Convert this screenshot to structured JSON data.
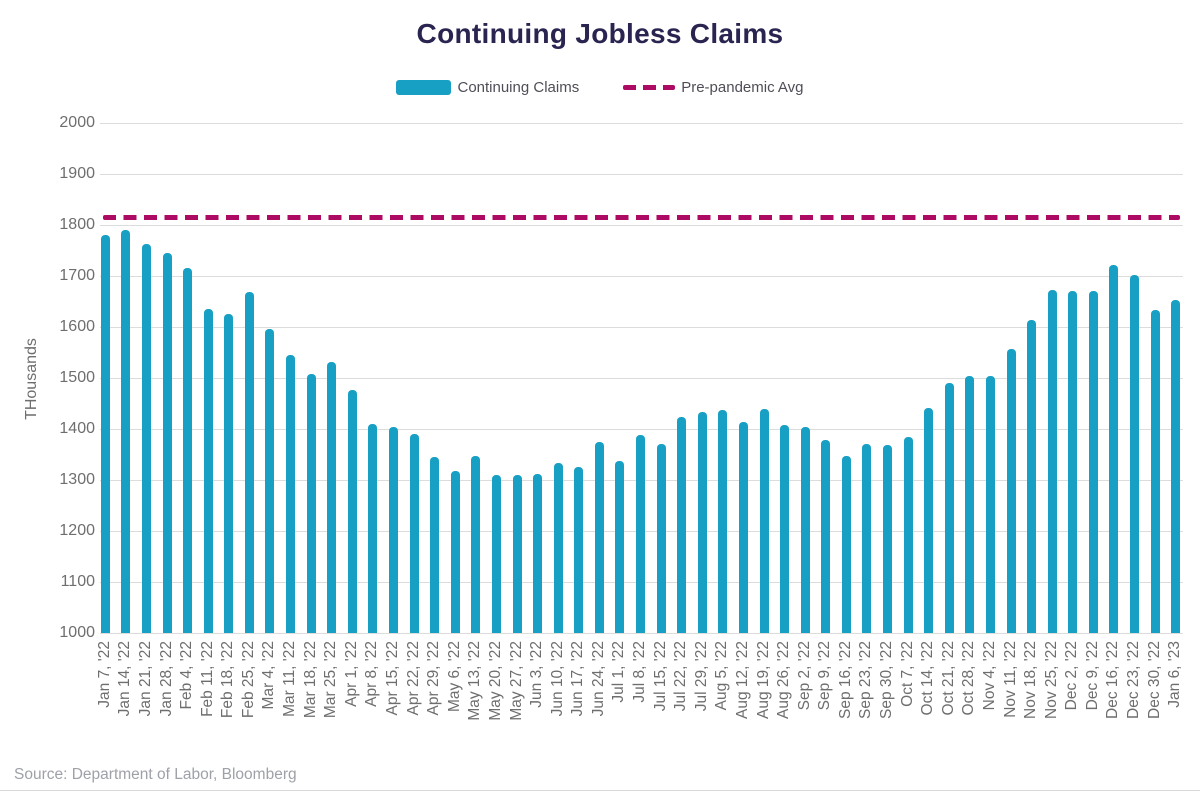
{
  "title": "Continuing Jobless Claims",
  "source_note": "Source: Department of Labor, Bloomberg",
  "colors": {
    "bar": "#18a0c4",
    "reference_line": "#ad0a64",
    "title_text": "#2a2550",
    "tick_text": "#6e6e6e",
    "legend_text": "#4e4e57",
    "gridline": "#dcdcdc",
    "source_text": "#9fa1a8"
  },
  "chart_data": {
    "type": "bar",
    "title": "Continuing Jobless Claims",
    "xlabel": "",
    "ylabel": "THousands",
    "ylim": [
      1000,
      2000
    ],
    "ytick_interval": 100,
    "grid": true,
    "legend_position": "top-center",
    "categories": [
      "Jan 7, '22",
      "Jan 14, '22",
      "Jan 21, '22",
      "Jan 28, '22",
      "Feb 4, '22",
      "Feb 11, '22",
      "Feb 18, '22",
      "Feb 25, '22",
      "Mar 4, '22",
      "Mar 11, '22",
      "Mar 18, '22",
      "Mar 25, '22",
      "Apr 1, '22",
      "Apr 8, '22",
      "Apr 15, '22",
      "Apr 22, '22",
      "Apr 29, '22",
      "May 6, '22",
      "May 13, '22",
      "May 20, '22",
      "May 27, '22",
      "Jun 3, '22",
      "Jun 10, '22",
      "Jun 17, '22",
      "Jun 24, '22",
      "Jul 1, '22",
      "Jul 8, '22",
      "Jul 15, '22",
      "Jul 22, '22",
      "Jul 29, '22",
      "Aug 5, '22",
      "Aug 12, '22",
      "Aug 19, '22",
      "Aug 26, '22",
      "Sep 2, '22",
      "Sep 9, '22",
      "Sep 16, '22",
      "Sep 23, '22",
      "Sep 30, '22",
      "Oct 7, '22",
      "Oct 14, '22",
      "Oct 21, '22",
      "Oct 28, '22",
      "Nov 4, '22",
      "Nov 11, '22",
      "Nov 18, '22",
      "Nov 25, '22",
      "Dec 2, '22",
      "Dec 9, '22",
      "Dec 16, '22",
      "Dec 23, '22",
      "Dec 30, '22",
      "Jan 6, '23"
    ],
    "series": [
      {
        "name": "Continuing Claims",
        "color": "#18a0c4",
        "values": [
          1780,
          1790,
          1762,
          1745,
          1716,
          1636,
          1626,
          1668,
          1597,
          1545,
          1508,
          1532,
          1477,
          1410,
          1404,
          1390,
          1345,
          1317,
          1347,
          1310,
          1310,
          1312,
          1333,
          1325,
          1375,
          1337,
          1388,
          1370,
          1424,
          1434,
          1437,
          1414,
          1440,
          1408,
          1404,
          1379,
          1347,
          1370,
          1368,
          1385,
          1441,
          1490,
          1503,
          1503,
          1556,
          1613,
          1673,
          1671,
          1671,
          1722,
          1701,
          1634,
          1653
        ]
      }
    ],
    "reference_line": {
      "name": "Pre-pandemic Avg",
      "value": 1815,
      "color": "#ad0a64",
      "style": "dashed"
    }
  }
}
